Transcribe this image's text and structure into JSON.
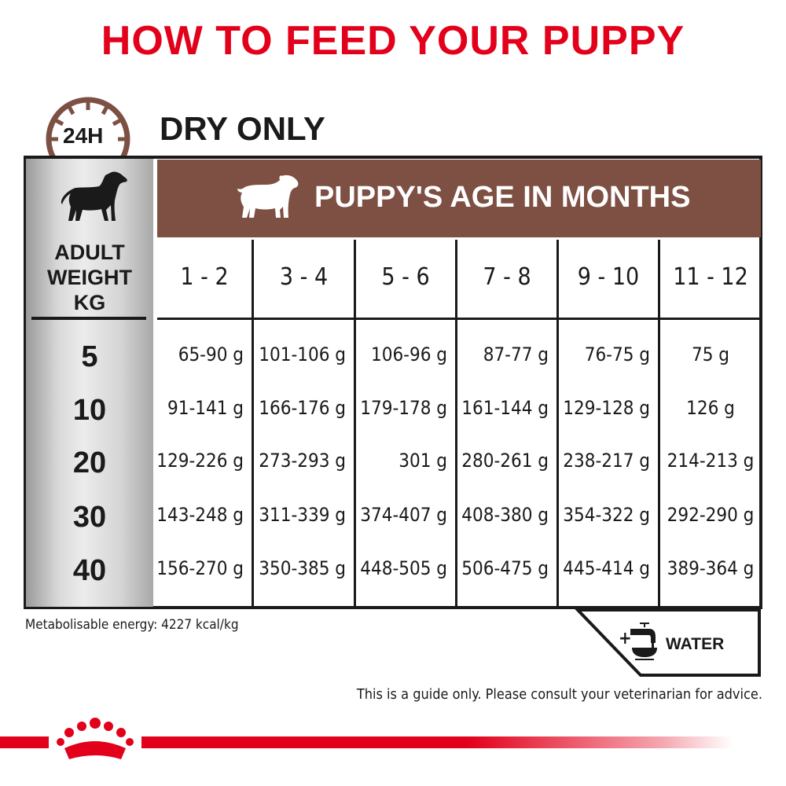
{
  "title": "HOW TO FEED YOUR PUPPY",
  "clock_label": "24H",
  "feeding_type": "DRY ONLY",
  "age_header": "PUPPY'S AGE IN MONTHS",
  "weight_header": [
    "ADULT",
    "WEIGHT",
    "KG"
  ],
  "columns": [
    "1 - 2",
    "3 - 4",
    "5 - 6",
    "7 - 8",
    "9 - 10",
    "11 - 12"
  ],
  "rows": [
    {
      "weight": "5",
      "values": [
        "65-90 g",
        "101-106 g",
        "106-96 g",
        "87-77 g",
        "76-75 g",
        "75 g"
      ]
    },
    {
      "weight": "10",
      "values": [
        "91-141 g",
        "166-176 g",
        "179-178 g",
        "161-144 g",
        "129-128 g",
        "126 g"
      ]
    },
    {
      "weight": "20",
      "values": [
        "129-226 g",
        "273-293 g",
        "301 g",
        "280-261 g",
        "238-217 g",
        "214-213 g"
      ]
    },
    {
      "weight": "30",
      "values": [
        "143-248 g",
        "311-339 g",
        "374-407 g",
        "408-380 g",
        "354-322 g",
        "292-290 g"
      ]
    },
    {
      "weight": "40",
      "values": [
        "156-270 g",
        "350-385 g",
        "448-505 g",
        "506-475 g",
        "445-414 g",
        "389-364 g"
      ]
    }
  ],
  "energy": "Metabolisable energy: 4227 kcal/kg",
  "water_label": "WATER",
  "water_plus": "+",
  "disclaimer": "This is a guide only. Please consult your veterinarian for advice.",
  "colors": {
    "brand_red": "#e2001a",
    "header_brown": "#7e4f43"
  },
  "icons": [
    "clock-icon",
    "adult-dog-icon",
    "puppy-icon",
    "water-tap-bowl-icon",
    "royal-canin-crown-logo"
  ]
}
